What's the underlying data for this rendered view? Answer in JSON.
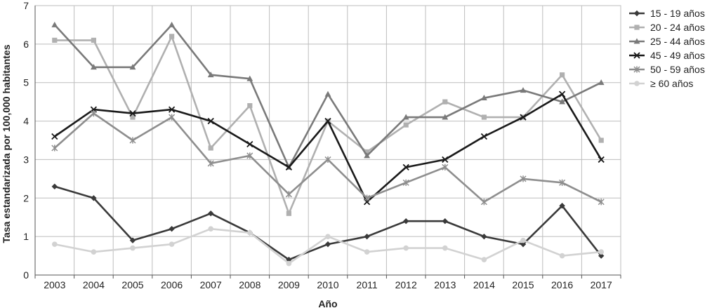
{
  "chart_data": {
    "type": "line",
    "xlabel": "Año",
    "ylabel": "Tasa estandarizada por 100,000 habitantes",
    "ylim": [
      0,
      7
    ],
    "yticks": [
      "0",
      "1",
      "2",
      "3",
      "4",
      "5",
      "6",
      "7"
    ],
    "grid": true,
    "legend_position": "right",
    "categories": [
      "2003",
      "2004",
      "2005",
      "2006",
      "2007",
      "2008",
      "2009",
      "2010",
      "2011",
      "2012",
      "2013",
      "2014",
      "2015",
      "2016",
      "2017"
    ],
    "series": [
      {
        "name": "15 - 19 años",
        "color": "#3a3a3a",
        "marker": "diamond",
        "values": [
          2.3,
          2.0,
          0.9,
          1.2,
          1.6,
          1.1,
          0.4,
          0.8,
          1.0,
          1.4,
          1.4,
          1.0,
          0.8,
          1.8,
          0.5
        ]
      },
      {
        "name": "20 - 24 años",
        "color": "#b0b0b0",
        "marker": "square",
        "values": [
          6.1,
          6.1,
          4.1,
          6.2,
          3.3,
          4.4,
          1.6,
          4.0,
          3.2,
          3.9,
          4.5,
          4.1,
          4.1,
          5.2,
          3.5
        ]
      },
      {
        "name": "25 - 44 años",
        "color": "#7a7a7a",
        "marker": "triangle",
        "values": [
          6.5,
          5.4,
          5.4,
          6.5,
          5.2,
          5.1,
          2.8,
          4.7,
          3.1,
          4.1,
          4.1,
          4.6,
          4.8,
          4.5,
          5.0
        ]
      },
      {
        "name": "45 - 49 años",
        "color": "#1a1a1a",
        "marker": "x",
        "values": [
          3.6,
          4.3,
          4.2,
          4.3,
          4.0,
          3.4,
          2.8,
          4.0,
          1.9,
          2.8,
          3.0,
          3.6,
          4.1,
          4.7,
          3.0
        ]
      },
      {
        "name": "50 - 59 años",
        "color": "#8e8e8e",
        "marker": "asterisk",
        "values": [
          3.3,
          4.2,
          3.5,
          4.1,
          2.9,
          3.1,
          2.1,
          3.0,
          2.0,
          2.4,
          2.8,
          1.9,
          2.5,
          2.4,
          1.9
        ]
      },
      {
        "name": "≥ 60 años",
        "color": "#d2d2d2",
        "marker": "circle",
        "values": [
          0.8,
          0.6,
          0.7,
          0.8,
          1.2,
          1.1,
          0.3,
          1.0,
          0.6,
          0.7,
          0.7,
          0.4,
          0.9,
          0.5,
          0.6
        ]
      }
    ]
  }
}
